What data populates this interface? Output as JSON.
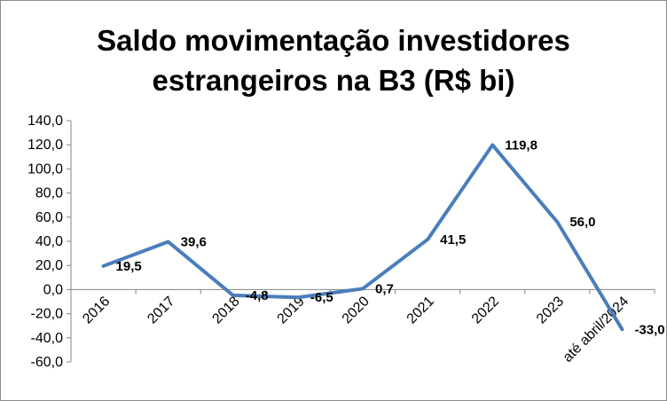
{
  "chart_data": {
    "type": "line",
    "title_lines": [
      "Saldo movimentação investidores",
      "estrangeiros na B3 (R$ bi)"
    ],
    "categories": [
      "2016",
      "2017",
      "2018",
      "2019",
      "2020",
      "2021",
      "2022",
      "2023",
      "até abril/2024"
    ],
    "series": [
      {
        "values": [
          19.5,
          39.6,
          -4.8,
          -6.5,
          0.7,
          41.5,
          119.8,
          56.0,
          -33.0
        ]
      }
    ],
    "data_labels": [
      "19,5",
      "39,6",
      "-4,8",
      "-6,5",
      "0,7",
      "41,5",
      "119,8",
      "56,0",
      "-33,0"
    ],
    "y_ticks": [
      140,
      120,
      100,
      80,
      60,
      40,
      20,
      0,
      -20,
      -40,
      -60
    ],
    "y_tick_labels": [
      "140,0",
      "120,0",
      "100,0",
      "80,0",
      "60,0",
      "40,0",
      "20,0",
      "0,0",
      "-20,0",
      "-40,0",
      "-60,0"
    ],
    "ylim": [
      -60,
      140
    ],
    "grid": false,
    "legend": "none",
    "line_color": "#4a7ebb",
    "xlabel": "",
    "ylabel": ""
  }
}
